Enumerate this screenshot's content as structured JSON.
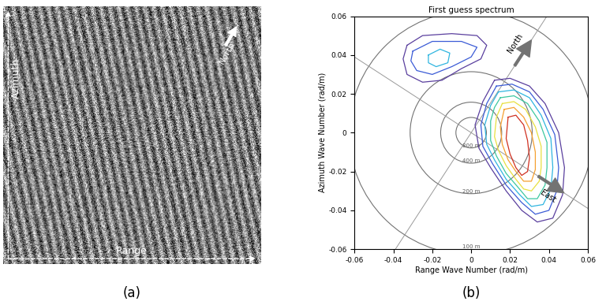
{
  "chart_data": [
    {
      "type": "image",
      "panel_label": "(a)",
      "azimuth_label": "Azimuth",
      "range_label": "Range",
      "directions": [
        {
          "label": "North",
          "angle_deg": 60
        }
      ]
    },
    {
      "type": "contour",
      "panel_label": "(b)",
      "title": "First guess spectrum",
      "x_label": "Range Wave Number (rad/m)",
      "y_label": "Azimuth Wave Number (rad/m)",
      "xlim": [
        -0.06,
        0.06
      ],
      "ylim": [
        -0.06,
        0.06
      ],
      "xticks": [
        -0.06,
        -0.04,
        -0.02,
        0,
        0.02,
        0.04,
        0.06
      ],
      "yticks": [
        -0.06,
        -0.04,
        -0.02,
        0,
        0.02,
        0.04,
        0.06
      ],
      "grid": false,
      "circles": [
        {
          "label": "800 m",
          "radius": 0.00785
        },
        {
          "label": "400 m",
          "radius": 0.0157
        },
        {
          "label": "200 m",
          "radius": 0.0314
        },
        {
          "label": "100 m",
          "radius": 0.0628
        }
      ],
      "directions": [
        {
          "label": "North",
          "angle_deg": 57
        },
        {
          "label": "East",
          "angle_deg": -33
        }
      ],
      "contours": [
        {
          "color": "#5a3f9e",
          "points": [
            [
              -0.033,
              0.045
            ],
            [
              -0.025,
              0.05
            ],
            [
              -0.01,
              0.051
            ],
            [
              0.003,
              0.05
            ],
            [
              0.008,
              0.045
            ],
            [
              0.005,
              0.038
            ],
            [
              -0.005,
              0.033
            ],
            [
              -0.015,
              0.027
            ],
            [
              -0.025,
              0.026
            ],
            [
              -0.033,
              0.03
            ],
            [
              -0.035,
              0.038
            ]
          ]
        },
        {
          "color": "#3b5bd6",
          "points": [
            [
              -0.03,
              0.042
            ],
            [
              -0.02,
              0.047
            ],
            [
              -0.005,
              0.047
            ],
            [
              0.003,
              0.044
            ],
            [
              0.0,
              0.039
            ],
            [
              -0.01,
              0.034
            ],
            [
              -0.02,
              0.03
            ],
            [
              -0.028,
              0.032
            ],
            [
              -0.031,
              0.037
            ]
          ]
        },
        {
          "color": "#2fb5e0",
          "points": [
            [
              -0.022,
              0.04
            ],
            [
              -0.016,
              0.043
            ],
            [
              -0.011,
              0.041
            ],
            [
              -0.012,
              0.036
            ],
            [
              -0.018,
              0.034
            ],
            [
              -0.022,
              0.036
            ]
          ]
        },
        {
          "color": "#5a3f9e",
          "points": [
            [
              0.012,
              0.027
            ],
            [
              0.02,
              0.028
            ],
            [
              0.03,
              0.024
            ],
            [
              0.038,
              0.015
            ],
            [
              0.045,
              0.0
            ],
            [
              0.048,
              -0.018
            ],
            [
              0.047,
              -0.032
            ],
            [
              0.042,
              -0.044
            ],
            [
              0.034,
              -0.046
            ],
            [
              0.026,
              -0.04
            ],
            [
              0.018,
              -0.03
            ],
            [
              0.01,
              -0.018
            ],
            [
              0.004,
              -0.008
            ],
            [
              0.002,
              0.004
            ],
            [
              0.006,
              0.016
            ]
          ]
        },
        {
          "color": "#3b5bd6",
          "points": [
            [
              0.013,
              0.024
            ],
            [
              0.021,
              0.025
            ],
            [
              0.03,
              0.021
            ],
            [
              0.037,
              0.012
            ],
            [
              0.043,
              -0.001
            ],
            [
              0.045,
              -0.018
            ],
            [
              0.044,
              -0.03
            ],
            [
              0.04,
              -0.04
            ],
            [
              0.033,
              -0.042
            ],
            [
              0.026,
              -0.036
            ],
            [
              0.018,
              -0.027
            ],
            [
              0.011,
              -0.016
            ],
            [
              0.006,
              -0.007
            ],
            [
              0.005,
              0.004
            ],
            [
              0.008,
              0.015
            ]
          ]
        },
        {
          "color": "#2fb5e0",
          "points": [
            [
              0.014,
              0.021
            ],
            [
              0.022,
              0.022
            ],
            [
              0.03,
              0.018
            ],
            [
              0.036,
              0.009
            ],
            [
              0.041,
              -0.003
            ],
            [
              0.042,
              -0.018
            ],
            [
              0.041,
              -0.029
            ],
            [
              0.037,
              -0.037
            ],
            [
              0.031,
              -0.038
            ],
            [
              0.025,
              -0.032
            ],
            [
              0.018,
              -0.024
            ],
            [
              0.012,
              -0.014
            ],
            [
              0.008,
              -0.006
            ],
            [
              0.007,
              0.004
            ],
            [
              0.01,
              0.014
            ]
          ]
        },
        {
          "color": "#3cc8a0",
          "points": [
            [
              0.015,
              0.018
            ],
            [
              0.022,
              0.019
            ],
            [
              0.029,
              0.015
            ],
            [
              0.035,
              0.006
            ],
            [
              0.039,
              -0.005
            ],
            [
              0.039,
              -0.018
            ],
            [
              0.038,
              -0.027
            ],
            [
              0.034,
              -0.034
            ],
            [
              0.029,
              -0.034
            ],
            [
              0.024,
              -0.028
            ],
            [
              0.018,
              -0.021
            ],
            [
              0.013,
              -0.012
            ],
            [
              0.01,
              -0.004
            ],
            [
              0.01,
              0.006
            ],
            [
              0.012,
              0.013
            ]
          ]
        },
        {
          "color": "#e8e040",
          "points": [
            [
              0.016,
              0.015
            ],
            [
              0.022,
              0.016
            ],
            [
              0.028,
              0.012
            ],
            [
              0.033,
              0.003
            ],
            [
              0.036,
              -0.007
            ],
            [
              0.036,
              -0.018
            ],
            [
              0.035,
              -0.025
            ],
            [
              0.031,
              -0.03
            ],
            [
              0.027,
              -0.029
            ],
            [
              0.023,
              -0.024
            ],
            [
              0.018,
              -0.017
            ],
            [
              0.014,
              -0.009
            ],
            [
              0.012,
              -0.002
            ],
            [
              0.013,
              0.008
            ]
          ]
        },
        {
          "color": "#f5a030",
          "points": [
            [
              0.017,
              0.012
            ],
            [
              0.022,
              0.013
            ],
            [
              0.027,
              0.008
            ],
            [
              0.031,
              0.0
            ],
            [
              0.033,
              -0.01
            ],
            [
              0.033,
              -0.019
            ],
            [
              0.031,
              -0.025
            ],
            [
              0.027,
              -0.025
            ],
            [
              0.023,
              -0.02
            ],
            [
              0.019,
              -0.014
            ],
            [
              0.016,
              -0.006
            ],
            [
              0.015,
              0.003
            ]
          ]
        },
        {
          "color": "#d03020",
          "points": [
            [
              0.019,
              0.008
            ],
            [
              0.023,
              0.009
            ],
            [
              0.027,
              0.004
            ],
            [
              0.029,
              -0.004
            ],
            [
              0.03,
              -0.013
            ],
            [
              0.029,
              -0.02
            ],
            [
              0.026,
              -0.022
            ],
            [
              0.023,
              -0.018
            ],
            [
              0.02,
              -0.011
            ],
            [
              0.018,
              -0.003
            ]
          ]
        }
      ]
    }
  ]
}
